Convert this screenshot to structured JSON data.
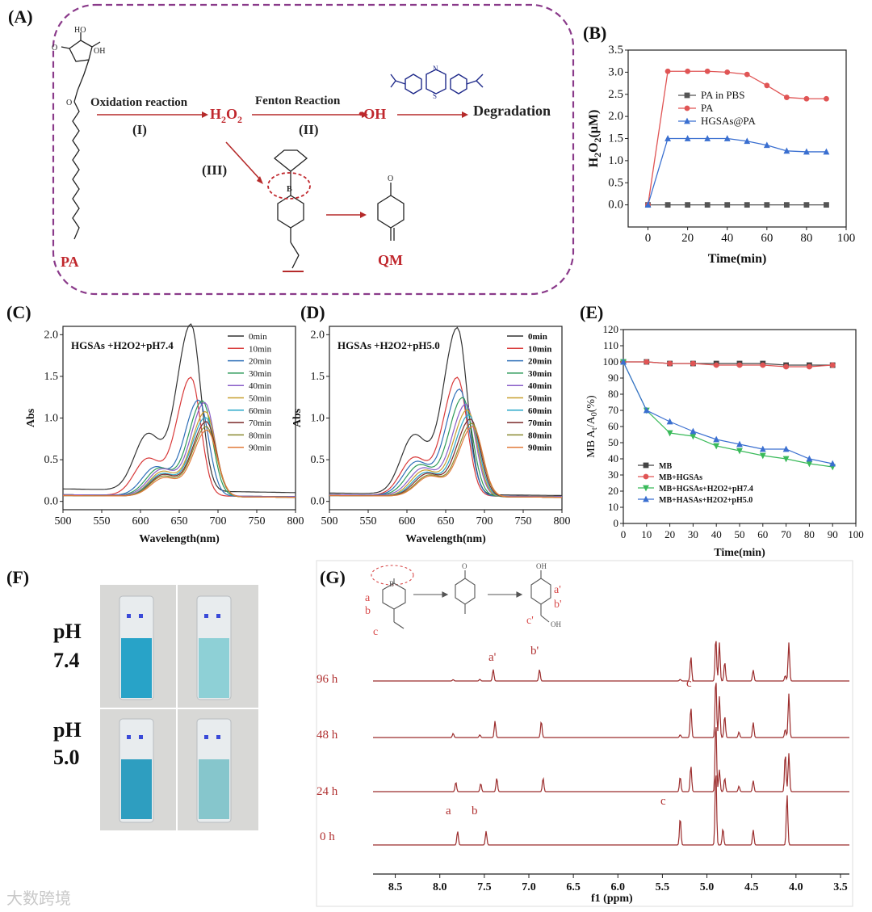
{
  "panels": {
    "A": "(A)",
    "B": "(B)",
    "C": "(C)",
    "D": "(D)",
    "E": "(E)",
    "F": "(F)",
    "G": "(G)"
  },
  "scheme": {
    "oxidation": "Oxidation reaction",
    "step1": "(I)",
    "fenton": "Fenton Reaction",
    "step2": "(II)",
    "step3": "(III)",
    "h2o2_main": "H",
    "h2o2_sub1": "2",
    "h2o2_o": "O",
    "h2o2_sub2": "2",
    "oh": "•OH",
    "degradation": "Degradation",
    "pa": "PA",
    "qm": "QM",
    "colors": {
      "frame": "#8a3a8a",
      "red": "#c0272d",
      "mb": "#1f2a8a"
    }
  },
  "photos": {
    "ph74_label_1": "pH",
    "ph74_label_2": "7.4",
    "ph50_label_1": "pH",
    "ph50_label_2": "5.0"
  },
  "nmr": {
    "labels": [
      "96 h",
      "48 h",
      "24 h",
      "0 h"
    ],
    "peak_a": "a",
    "peak_b": "b",
    "peak_c": "c",
    "peak_a2": "a'",
    "peak_b2": "b'",
    "peak_c2": "c'",
    "xticks": [
      "8.5",
      "8.0",
      "7.5",
      "7.0",
      "6.5",
      "6.0",
      "5.5",
      "5.0",
      "4.5",
      "4.0",
      "3.5"
    ],
    "xlabel": "f1 (ppm)",
    "scheme_a": "a",
    "scheme_b": "b",
    "scheme_c": "c",
    "scheme_a2": "a'",
    "scheme_b2": "b'",
    "scheme_c2": "c'",
    "color": "#9b2c2c"
  },
  "watermark": "大数跨境",
  "chart_data": [
    {
      "id": "B",
      "type": "line",
      "x": [
        0,
        10,
        20,
        30,
        40,
        50,
        60,
        70,
        80,
        90
      ],
      "xlim": [
        -10,
        100
      ],
      "ylim": [
        -0.5,
        3.5
      ],
      "xticks": [
        0,
        20,
        40,
        60,
        80,
        100
      ],
      "yticks": [
        0.0,
        0.5,
        1.0,
        1.5,
        2.0,
        2.5,
        3.0,
        3.5
      ],
      "xlabel": "Time(min)",
      "ylabel": "H2O2(μM)",
      "legend": "center-right",
      "series": [
        {
          "name": "PA in PBS",
          "color": "#555555",
          "marker": "square",
          "values": [
            0,
            0,
            0,
            0,
            0,
            0,
            0,
            0,
            0,
            0
          ]
        },
        {
          "name": "PA",
          "color": "#e05555",
          "marker": "circle",
          "values": [
            0,
            3.02,
            3.02,
            3.02,
            3.0,
            2.95,
            2.7,
            2.43,
            2.4,
            2.4
          ]
        },
        {
          "name": "HGSAs@PA",
          "color": "#3a6fd0",
          "marker": "triangle",
          "values": [
            0,
            1.5,
            1.5,
            1.5,
            1.5,
            1.44,
            1.35,
            1.22,
            1.2,
            1.2
          ]
        }
      ]
    },
    {
      "id": "C",
      "type": "line",
      "annotation": "HGSAs +H2O2+pH7.4",
      "xlim": [
        500,
        800
      ],
      "ylim": [
        -0.1,
        2.1
      ],
      "xticks": [
        500,
        550,
        600,
        650,
        700,
        750,
        800
      ],
      "yticks": [
        0.0,
        0.5,
        1.0,
        1.5,
        2.0
      ],
      "xlabel": "Wavelength(nm)",
      "ylabel": "Abs",
      "legend": "top-right",
      "series": [
        {
          "name": "0min",
          "color": "#333333",
          "peak": 2.0,
          "shoulder": 1.22,
          "center": 665,
          "base": 0.15
        },
        {
          "name": "10min",
          "color": "#d83a3a",
          "peak": 1.42,
          "shoulder": 0.78,
          "center": 665,
          "base": 0.08
        },
        {
          "name": "20min",
          "color": "#2f6fb8",
          "peak": 1.15,
          "shoulder": 0.62,
          "center": 675,
          "base": 0.08
        },
        {
          "name": "30min",
          "color": "#2f9a5a",
          "peak": 1.14,
          "shoulder": 0.6,
          "center": 680,
          "base": 0.08
        },
        {
          "name": "40min",
          "color": "#8a5ec8",
          "peak": 1.12,
          "shoulder": 0.58,
          "center": 683,
          "base": 0.08
        },
        {
          "name": "50min",
          "color": "#c8a030",
          "peak": 1.02,
          "shoulder": 0.54,
          "center": 684,
          "base": 0.07
        },
        {
          "name": "60min",
          "color": "#2aa7c8",
          "peak": 0.95,
          "shoulder": 0.5,
          "center": 684,
          "base": 0.07
        },
        {
          "name": "70min",
          "color": "#7a2a2a",
          "peak": 0.9,
          "shoulder": 0.48,
          "center": 685,
          "base": 0.07
        },
        {
          "name": "80min",
          "color": "#8a8a30",
          "peak": 0.84,
          "shoulder": 0.45,
          "center": 685,
          "base": 0.07
        },
        {
          "name": "90min",
          "color": "#e07a3a",
          "peak": 0.8,
          "shoulder": 0.42,
          "center": 686,
          "base": 0.07
        }
      ]
    },
    {
      "id": "D",
      "type": "line",
      "annotation": "HGSAs +H2O2+pH5.0",
      "xlim": [
        500,
        800
      ],
      "ylim": [
        -0.1,
        2.1
      ],
      "xticks": [
        500,
        550,
        600,
        650,
        700,
        750,
        800
      ],
      "yticks": [
        0.0,
        0.5,
        1.0,
        1.5,
        2.0
      ],
      "xlabel": "Wavelength(nm)",
      "ylabel": "Abs",
      "legend": "top-right",
      "series": [
        {
          "name": "0min",
          "color": "#333333",
          "peak": 2.0,
          "shoulder": 1.22,
          "center": 665,
          "base": 0.1
        },
        {
          "name": "10min",
          "color": "#d83a3a",
          "peak": 1.42,
          "shoulder": 0.8,
          "center": 665,
          "base": 0.08
        },
        {
          "name": "20min",
          "color": "#2f6fb8",
          "peak": 1.28,
          "shoulder": 0.72,
          "center": 668,
          "base": 0.08
        },
        {
          "name": "30min",
          "color": "#2f9a5a",
          "peak": 1.18,
          "shoulder": 0.66,
          "center": 672,
          "base": 0.08
        },
        {
          "name": "40min",
          "color": "#8a5ec8",
          "peak": 1.1,
          "shoulder": 0.6,
          "center": 676,
          "base": 0.08
        },
        {
          "name": "50min",
          "color": "#c8a030",
          "peak": 1.04,
          "shoulder": 0.56,
          "center": 678,
          "base": 0.07
        },
        {
          "name": "60min",
          "color": "#2aa7c8",
          "peak": 0.98,
          "shoulder": 0.52,
          "center": 680,
          "base": 0.07
        },
        {
          "name": "70min",
          "color": "#7a2a2a",
          "peak": 0.93,
          "shoulder": 0.5,
          "center": 682,
          "base": 0.07
        },
        {
          "name": "80min",
          "color": "#8a8a30",
          "peak": 0.88,
          "shoulder": 0.47,
          "center": 684,
          "base": 0.07
        },
        {
          "name": "90min",
          "color": "#e07a3a",
          "peak": 0.84,
          "shoulder": 0.45,
          "center": 685,
          "base": 0.07
        }
      ]
    },
    {
      "id": "E",
      "type": "line",
      "x": [
        0,
        10,
        20,
        30,
        40,
        50,
        60,
        70,
        80,
        90
      ],
      "xlim": [
        0,
        100
      ],
      "ylim": [
        0,
        120
      ],
      "xticks": [
        0,
        10,
        20,
        30,
        40,
        50,
        60,
        70,
        80,
        90,
        100
      ],
      "yticks": [
        0,
        10,
        20,
        30,
        40,
        50,
        60,
        70,
        80,
        90,
        100,
        110,
        120
      ],
      "xlabel": "Time(min)",
      "ylabel": "MB At/A0(%)",
      "legend": "bottom-left",
      "series": [
        {
          "name": "MB",
          "color": "#444444",
          "marker": "square",
          "values": [
            100,
            100,
            99,
            99,
            99,
            99,
            99,
            98,
            98,
            98
          ]
        },
        {
          "name": "MB+HGSAs",
          "color": "#e05555",
          "marker": "circle",
          "values": [
            100,
            100,
            99,
            99,
            98,
            98,
            98,
            97,
            97,
            98
          ]
        },
        {
          "name": "MB+HGSAs+H2O2+pH7.4",
          "color": "#3aba5a",
          "marker": "triangle-down",
          "values": [
            100,
            70,
            56,
            54,
            48,
            45,
            42,
            40,
            37,
            35
          ]
        },
        {
          "name": "MB+HASAs+H2O2+pH5.0",
          "color": "#3a6fd0",
          "marker": "triangle",
          "values": [
            100,
            70,
            63,
            57,
            52,
            49,
            46,
            46,
            40,
            37
          ]
        }
      ]
    }
  ]
}
